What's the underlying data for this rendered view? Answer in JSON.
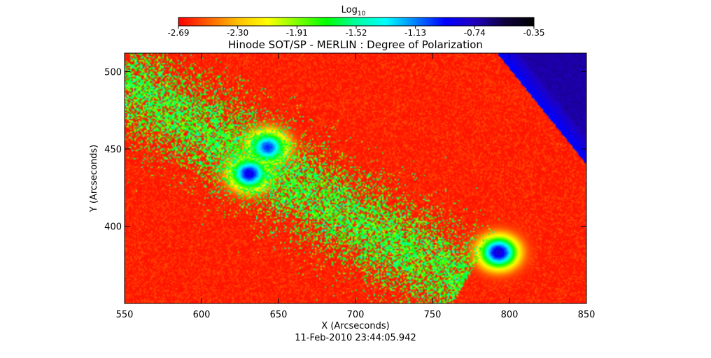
{
  "chart_data": {
    "type": "heatmap",
    "title": "Hinode SOT/SP - MERLIN : Degree of Polarization",
    "xlabel": "X (Arcseconds)",
    "ylabel": "Y (Arcseconds)",
    "footer": "11-Feb-2010 23:44:05.942",
    "xlim": [
      550,
      850
    ],
    "ylim": [
      350,
      512
    ],
    "x_ticks": [
      550,
      600,
      650,
      700,
      750,
      800,
      850
    ],
    "y_ticks": [
      400,
      450,
      500
    ],
    "x_tick_labels": [
      "550",
      "600",
      "650",
      "700",
      "750",
      "800",
      "850"
    ],
    "y_tick_labels": [
      "400",
      "450",
      "500"
    ],
    "colorbar": {
      "label_base": "Log",
      "label_sub": "10",
      "range": [
        -2.69,
        -0.35
      ],
      "ticks": [
        -2.69,
        -2.3,
        -1.91,
        -1.52,
        -1.13,
        -0.74,
        -0.35
      ],
      "tick_labels": [
        "-2.69",
        "-2.30",
        "-1.91",
        "-1.52",
        "-1.13",
        "-0.74",
        "-0.35"
      ],
      "colormap": [
        "#ff0000",
        "#ff6000",
        "#ffc000",
        "#ffff00",
        "#80ff00",
        "#00ff00",
        "#00ffa0",
        "#00ffff",
        "#0080ff",
        "#0000ff",
        "#2000c0",
        "#100040",
        "#000000"
      ]
    },
    "background_value": -2.65,
    "features": [
      {
        "name": "sunspot",
        "x": 631,
        "y": 434,
        "peak": -0.85
      },
      {
        "name": "sunspot",
        "x": 643,
        "y": 451,
        "peak": -1.0
      },
      {
        "name": "sunspot",
        "x": 793,
        "y": 383,
        "peak": -0.78
      },
      {
        "name": "plage-band",
        "from": [
          555,
          490
        ],
        "to": [
          760,
          368
        ],
        "level": -1.45
      },
      {
        "name": "limb-edge",
        "from": [
          792,
          512
        ],
        "to": [
          850,
          440
        ],
        "level": -0.95
      }
    ]
  }
}
